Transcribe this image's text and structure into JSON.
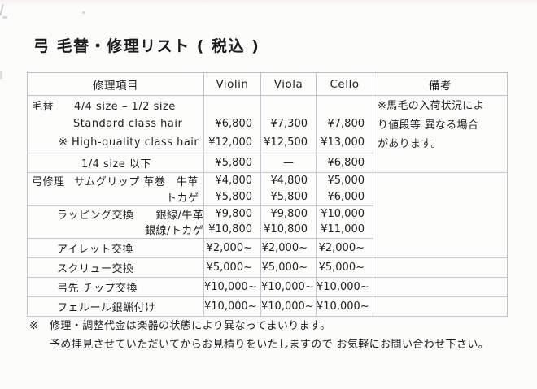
{
  "title": "弓 毛替・修理リスト ( 税込 )",
  "table": {
    "headers": {
      "item": "修理項目",
      "violin": "Violin",
      "viola": "Viola",
      "cello": "Cello",
      "remarks": "備考"
    },
    "remarks_note": {
      "line1": "※馬毛の入荷状況によ",
      "line2": "り値段等 異なる場合",
      "line3": "があります。"
    },
    "rows": [
      {
        "label": "毛替",
        "item": "4/4 size – 1/2 size",
        "violin": "",
        "viola": "",
        "cello": ""
      },
      {
        "item": "Standard class hair",
        "violin": "¥6,800",
        "viola": "¥7,300",
        "cello": "¥7,800"
      },
      {
        "item": "※ High-quality class hair",
        "violin": "¥12,000",
        "viola": "¥12,500",
        "cello": "¥13,000"
      },
      {
        "item": "1/4 size 以下",
        "violin": "¥5,800",
        "viola": "—",
        "cello": "¥6,800"
      },
      {
        "label": "弓修理",
        "item": "サムグリップ 革巻　牛革",
        "violin": "¥4,800",
        "viola": "¥4,800",
        "cello": "¥5,000"
      },
      {
        "item": "トカゲ",
        "violin": "¥5,800",
        "viola": "¥5,800",
        "cello": "¥6,000"
      },
      {
        "item": "ラッピング交換　　銀線/牛革",
        "violin": "¥9,800",
        "viola": "¥9,800",
        "cello": "¥10,000"
      },
      {
        "item": "銀線/トカゲ",
        "violin": "¥10,800",
        "viola": "¥10,800",
        "cello": "¥11,000"
      },
      {
        "item": "アイレット交換",
        "violin": "¥2,000~",
        "viola": "¥2,000~",
        "cello": "¥2,000~"
      },
      {
        "item": "スクリュー交換",
        "violin": "¥5,000~",
        "viola": "¥5,000~",
        "cello": "¥5,000~"
      },
      {
        "item": "弓先 チップ交換",
        "violin": "¥10,000~",
        "viola": "¥10,000~",
        "cello": "¥10,000~"
      },
      {
        "item": "フェルール銀蝋付け",
        "violin": "¥10,000~",
        "viola": "¥10,000~",
        "cello": "¥10,000~"
      }
    ]
  },
  "footnote": {
    "mark": "※",
    "line1": "修理・調整代金は楽器の状態により異なってまいります。",
    "line2": "予め拝見させていただいてからお見積りをいたしますので お気軽にお問い合わせ下さい。"
  },
  "colors": {
    "paper": "#fcfcfb",
    "ink": "#1e1e1e",
    "table_border": "#c7c2cd"
  }
}
